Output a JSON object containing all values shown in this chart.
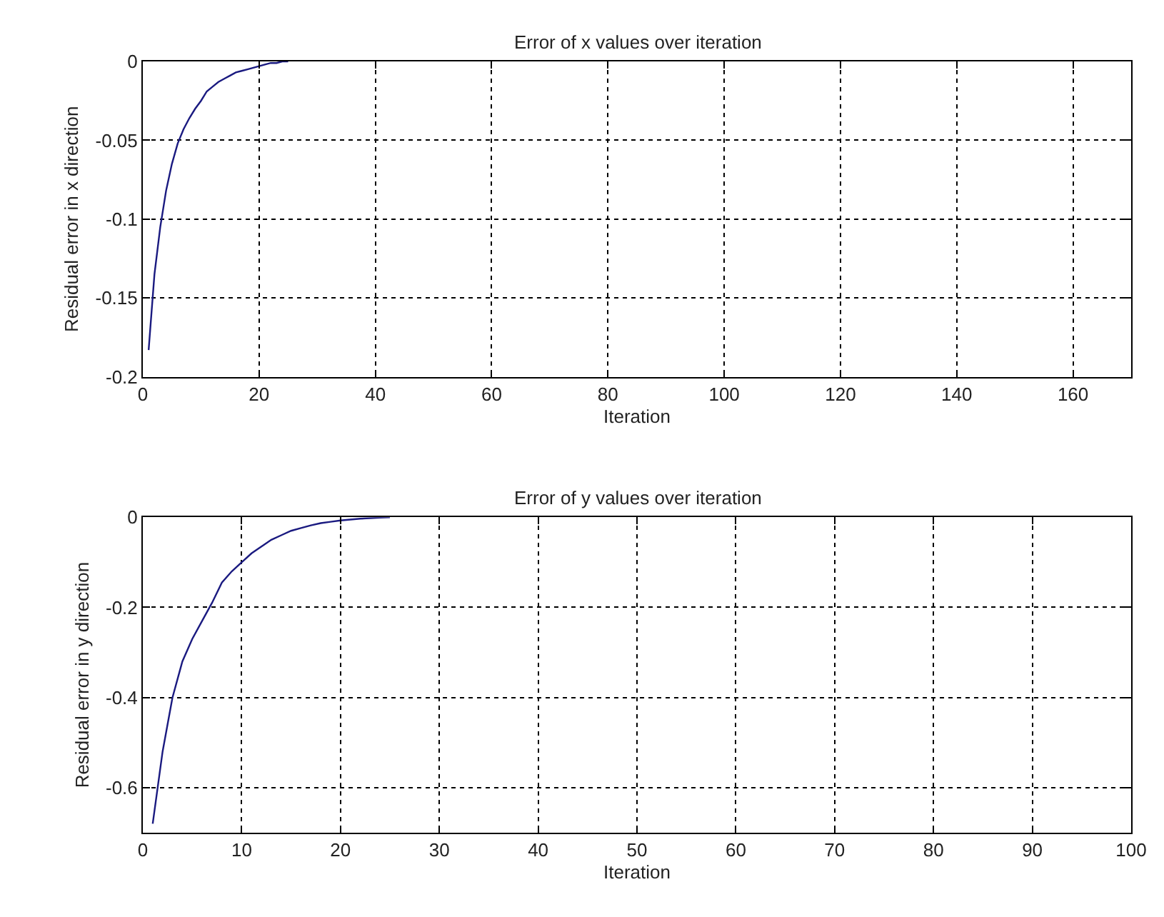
{
  "chart_data": [
    {
      "type": "line",
      "title": "Error of x values over iteration",
      "xlabel": "Iteration",
      "ylabel": "Residual error in x direction",
      "x": [
        1,
        2,
        3,
        4,
        5,
        6,
        7,
        8,
        9,
        10,
        11,
        12,
        13,
        14,
        15,
        16,
        17,
        18,
        19,
        20,
        21,
        22,
        23,
        24,
        25
      ],
      "values": [
        -0.183,
        -0.135,
        -0.105,
        -0.082,
        -0.065,
        -0.052,
        -0.043,
        -0.036,
        -0.03,
        -0.025,
        -0.019,
        -0.016,
        -0.013,
        -0.011,
        -0.009,
        -0.007,
        -0.006,
        -0.005,
        -0.004,
        -0.003,
        -0.002,
        -0.001,
        -0.001,
        0,
        0
      ],
      "color": "#1a1a80",
      "line_style": "solid",
      "xlim": [
        0,
        170
      ],
      "xticks": [
        0,
        20,
        40,
        60,
        80,
        100,
        120,
        140,
        160
      ],
      "ylim": [
        -0.2,
        0
      ],
      "yticks": [
        -0.2,
        -0.15,
        -0.1,
        -0.05,
        0
      ],
      "grid": true
    },
    {
      "type": "line",
      "title": "Error of y values over iteration",
      "xlabel": "Iteration",
      "ylabel": "Residual error in y direction",
      "x": [
        1,
        2,
        3,
        4,
        5,
        6,
        7,
        8,
        9,
        10,
        11,
        12,
        13,
        14,
        15,
        16,
        17,
        18,
        19,
        20,
        21,
        22,
        23,
        24,
        25
      ],
      "values": [
        -0.68,
        -0.52,
        -0.4,
        -0.32,
        -0.27,
        -0.23,
        -0.19,
        -0.145,
        -0.12,
        -0.1,
        -0.08,
        -0.065,
        -0.05,
        -0.04,
        -0.03,
        -0.024,
        -0.018,
        -0.013,
        -0.01,
        -0.007,
        -0.005,
        -0.003,
        -0.002,
        -0.001,
        0
      ],
      "color": "#1a1a80",
      "line_style": "solid",
      "xlim": [
        0,
        100
      ],
      "xticks": [
        0,
        10,
        20,
        30,
        40,
        50,
        60,
        70,
        80,
        90,
        100
      ],
      "ylim": [
        -0.7,
        0
      ],
      "yticks": [
        -0.6,
        -0.4,
        -0.2,
        0
      ],
      "grid": true
    }
  ]
}
